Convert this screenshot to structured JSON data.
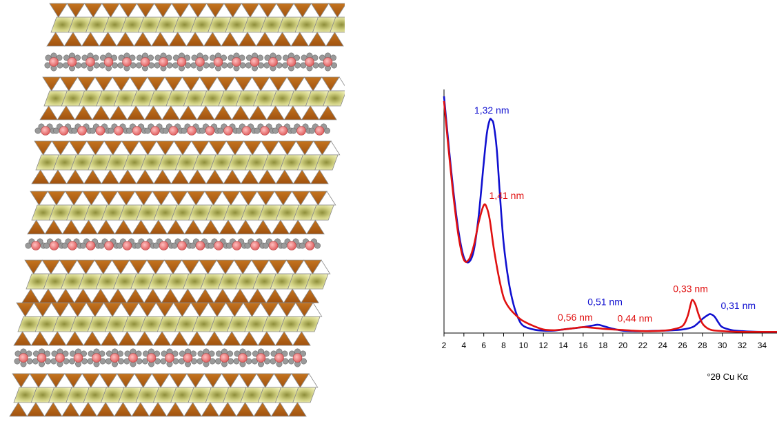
{
  "colors": {
    "tetrahedral": "#a0520f",
    "octahedral": "#d9d98a",
    "interlayer": "#e06060",
    "blue": "#1010d0",
    "red": "#e01010"
  },
  "structure": {
    "description_icon": "clay-layer-icon"
  },
  "chart_data": {
    "type": "line",
    "xlabel": "°2θ Cu Kα",
    "ylabel": "",
    "xlim": [
      2,
      35.5
    ],
    "ylim": [
      0,
      100
    ],
    "xticks": [
      2,
      4,
      6,
      8,
      10,
      12,
      14,
      16,
      18,
      20,
      22,
      24,
      26,
      28,
      30,
      32,
      34
    ],
    "xtick_labels": [
      "2",
      "4",
      "6",
      "8",
      "10",
      "12",
      "14",
      "16",
      "18",
      "20",
      "22",
      "24",
      "26",
      "28",
      "30",
      "32",
      "34"
    ],
    "series": [
      {
        "color": "#1010d0",
        "x": [
          2,
          2.5,
          3,
          3.5,
          4,
          4.5,
          5,
          5.5,
          6,
          6.3,
          6.6,
          6.8,
          7,
          7.3,
          7.6,
          8,
          8.5,
          9,
          9.5,
          10,
          11,
          12,
          13,
          14,
          15,
          16,
          17,
          17.5,
          18,
          19,
          20,
          21,
          22,
          23,
          24,
          25,
          26,
          27,
          27.5,
          28,
          28.5,
          28.8,
          29.2,
          29.6,
          30,
          31,
          32,
          33,
          34,
          35.5
        ],
        "y": [
          100,
          78,
          58,
          42,
          32,
          30,
          35,
          50,
          72,
          84,
          90,
          90,
          88,
          78,
          60,
          38,
          22,
          12,
          6,
          3,
          1.5,
          1,
          1,
          1.5,
          2,
          2.5,
          3.2,
          3.5,
          3,
          1.8,
          1,
          0.8,
          0.8,
          0.9,
          1,
          1.2,
          1.5,
          2.5,
          4,
          6,
          7.5,
          8,
          7,
          4.5,
          2.5,
          1.2,
          0.8,
          0.6,
          0.5,
          0.5
        ]
      },
      {
        "color": "#e01010",
        "x": [
          2,
          2.5,
          3,
          3.5,
          4,
          4.5,
          5,
          5.5,
          6,
          6.3,
          6.6,
          7,
          7.5,
          8,
          8.5,
          9,
          9.5,
          10,
          11,
          12,
          13,
          14,
          15,
          16,
          17,
          18,
          19,
          20,
          21,
          22,
          23,
          24,
          25,
          26,
          26.5,
          26.8,
          27,
          27.3,
          27.6,
          28,
          28.5,
          29,
          30,
          31,
          32,
          33,
          34,
          35.5
        ],
        "y": [
          98,
          76,
          56,
          40,
          31,
          31,
          37,
          47,
          54,
          53,
          48,
          36,
          24,
          15,
          11,
          8.5,
          6.5,
          5,
          3,
          1.5,
          1.2,
          1.5,
          2,
          2.5,
          2.2,
          1.8,
          1.5,
          1.3,
          1,
          0.8,
          0.8,
          1,
          1.5,
          3,
          7,
          12,
          14,
          12,
          8,
          4,
          2,
          1.2,
          0.8,
          0.6,
          0.5,
          0.5,
          0.5,
          0.5
        ]
      }
    ],
    "annotations": [
      {
        "text": "1,32 nm",
        "x": 6.8,
        "y": 91,
        "color": "#1010d0"
      },
      {
        "text": "1,41 nm",
        "x": 8.3,
        "y": 55,
        "color": "#e01010"
      },
      {
        "text": "0,56 nm",
        "x": 15.2,
        "y": 3.5,
        "color": "#e01010"
      },
      {
        "text": "0,51 nm",
        "x": 18.2,
        "y": 10,
        "color": "#1010d0"
      },
      {
        "text": "0,44 nm",
        "x": 21.2,
        "y": 3.0,
        "color": "#e01010"
      },
      {
        "text": "0,33 nm",
        "x": 26.8,
        "y": 15.5,
        "color": "#e01010"
      },
      {
        "text": "0,31 nm",
        "x": 31.6,
        "y": 8.5,
        "color": "#1010d0"
      }
    ]
  }
}
